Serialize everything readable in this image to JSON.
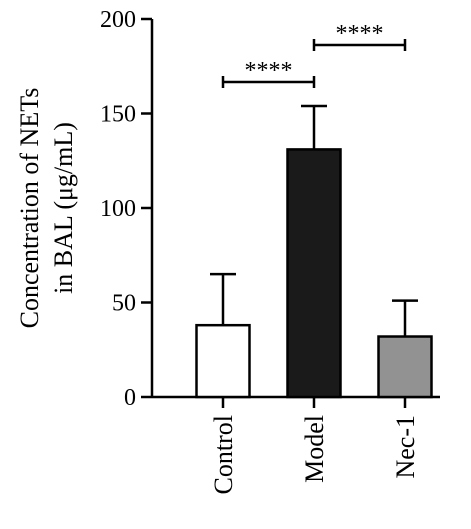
{
  "chart_data": {
    "type": "bar",
    "title": "",
    "ylabel_lines": [
      "Concentration of NETs",
      "in BAL (μg/mL)"
    ],
    "xlabel": "",
    "ylim": [
      0,
      200
    ],
    "yticks": [
      0,
      50,
      100,
      150,
      200
    ],
    "categories": [
      "Control",
      "Model",
      "Nec-1"
    ],
    "values": [
      38,
      131,
      32
    ],
    "errors": [
      27,
      23,
      19
    ],
    "colors": [
      "#ffffff",
      "#1a1a1a",
      "#929292"
    ],
    "significance": [
      {
        "from": 0,
        "to": 1,
        "label": "****"
      },
      {
        "from": 1,
        "to": 2,
        "label": "****"
      }
    ],
    "grid": false,
    "legend": "none"
  }
}
